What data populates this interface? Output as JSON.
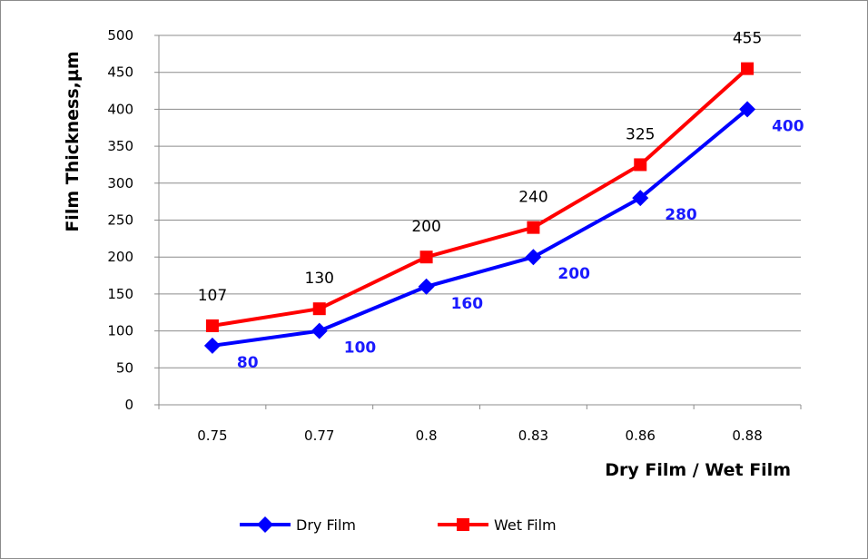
{
  "chart_data": {
    "type": "line",
    "title": "",
    "xlabel": "Dry Film / Wet Film",
    "ylabel": "Film Thickness,µm",
    "categories": [
      "0.75",
      "0.77",
      "0.8",
      "0.83",
      "0.86",
      "0.88"
    ],
    "ylim": [
      0,
      500
    ],
    "yticks": [
      0,
      50,
      100,
      150,
      200,
      250,
      300,
      350,
      400,
      450,
      500
    ],
    "grid": "horizontal",
    "legend": "bottom",
    "series": [
      {
        "name": "Dry Film",
        "color": "#0000ff",
        "marker": "diamond",
        "label_color": "#1a1aff",
        "values": [
          80,
          100,
          160,
          200,
          280,
          400
        ]
      },
      {
        "name": "Wet Film",
        "color": "#ff0000",
        "marker": "square",
        "label_color": "#000000",
        "values": [
          107,
          130,
          200,
          240,
          325,
          455
        ]
      }
    ]
  }
}
